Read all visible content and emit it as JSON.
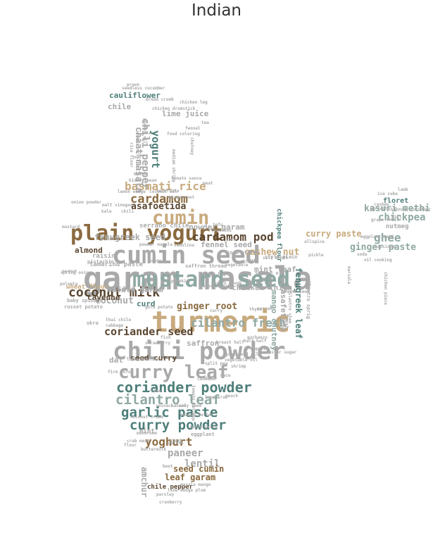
{
  "title": "Indian",
  "palette": {
    "gray": "#a9a9a9",
    "teal": "#4e7f7a",
    "sage": "#8fa8a3",
    "brown": "#8a6a3f",
    "tan": "#c8aa7e",
    "dark": "#5a4630"
  },
  "words": [
    {
      "text": "garam masala",
      "size": 100,
      "color": "gray"
    },
    {
      "text": "turmeric",
      "size": 95,
      "color": "tan"
    },
    {
      "text": "cumin seed",
      "size": 80,
      "color": "gray"
    },
    {
      "text": "chili powder",
      "size": 80,
      "color": "gray"
    },
    {
      "text": "mustard seed",
      "size": 78,
      "color": "sage"
    },
    {
      "text": "plain yogurt",
      "size": 70,
      "color": "brown"
    },
    {
      "text": "curry leaf",
      "size": 62,
      "color": "gray"
    },
    {
      "text": "cumin",
      "size": 60,
      "color": "tan"
    },
    {
      "text": "coriander powder",
      "size": 50,
      "color": "teal"
    },
    {
      "text": "cilantro leaf",
      "size": 48,
      "color": "sage"
    },
    {
      "text": "garlic paste",
      "size": 48,
      "color": "teal"
    },
    {
      "text": "curry powder",
      "size": 46,
      "color": "teal"
    },
    {
      "text": "coconut milk",
      "size": 45,
      "color": "dark"
    },
    {
      "text": "cardamom",
      "size": 44,
      "color": "brown"
    },
    {
      "text": "basmati rice",
      "size": 42,
      "color": "tan"
    },
    {
      "text": "cardamom pod",
      "size": 40,
      "color": "dark"
    },
    {
      "text": "cilantro fresh",
      "size": 40,
      "color": "sage"
    },
    {
      "text": "ghee",
      "size": 40,
      "color": "sage"
    },
    {
      "text": "yoghurt",
      "size": 38,
      "color": "brown"
    },
    {
      "text": "coriander seed",
      "size": 36,
      "color": "dark"
    },
    {
      "text": "yogurt",
      "size": 36,
      "color": "teal"
    },
    {
      "text": "chickpea",
      "size": 34,
      "color": "sage"
    },
    {
      "text": "chili pepper",
      "size": 34,
      "color": "gray"
    },
    {
      "text": "paneer",
      "size": 32,
      "color": "gray"
    },
    {
      "text": "lentil",
      "size": 30,
      "color": "gray"
    },
    {
      "text": "kasuri methi",
      "size": 30,
      "color": "sage"
    },
    {
      "text": "ginger paste",
      "size": 30,
      "color": "sage"
    },
    {
      "text": "ginger root",
      "size": 30,
      "color": "brown"
    },
    {
      "text": "cashew nut",
      "size": 30,
      "color": "tan"
    },
    {
      "text": "asafoetida",
      "size": 30,
      "color": "dark"
    },
    {
      "text": "coconut",
      "size": 30,
      "color": "gray"
    },
    {
      "text": "chaat masala",
      "size": 28,
      "color": "gray"
    },
    {
      "text": "seed cumin",
      "size": 28,
      "color": "brown"
    },
    {
      "text": "leaf garam",
      "size": 28,
      "color": "brown"
    },
    {
      "text": "amchur",
      "size": 28,
      "color": "gray"
    },
    {
      "text": "fenugreek leaf",
      "size": 26,
      "color": "teal"
    },
    {
      "text": "curry paste",
      "size": 26,
      "color": "tan"
    },
    {
      "text": "fenugreek seed",
      "size": 26,
      "color": "gray"
    },
    {
      "text": "lime juice",
      "size": 26,
      "color": "gray"
    },
    {
      "text": "cauliflower",
      "size": 26,
      "color": "teal"
    },
    {
      "text": "masala garam",
      "size": 26,
      "color": "gray"
    },
    {
      "text": "powder garam",
      "size": 26,
      "color": "gray"
    },
    {
      "text": "fennel seed",
      "size": 26,
      "color": "gray"
    },
    {
      "text": "mint leaf",
      "size": 26,
      "color": "gray"
    },
    {
      "text": "chicken thigh",
      "size": 26,
      "color": "gray"
    },
    {
      "text": "mango chutney",
      "size": 26,
      "color": "sage"
    },
    {
      "text": "asafetida",
      "size": 26,
      "color": "gray"
    },
    {
      "text": "masala cumin",
      "size": 26,
      "color": "gray"
    },
    {
      "text": "seed curry",
      "size": 24,
      "color": "dark"
    },
    {
      "text": "curd",
      "size": 24,
      "color": "teal"
    },
    {
      "text": "almond",
      "size": 24,
      "color": "dark"
    },
    {
      "text": "cayenne",
      "size": 24,
      "color": "dark"
    },
    {
      "text": "dal",
      "size": 24,
      "color": "gray"
    },
    {
      "text": "saffron",
      "size": 24,
      "color": "gray"
    },
    {
      "text": "chile",
      "size": 24,
      "color": "gray"
    },
    {
      "text": "floret",
      "size": 24,
      "color": "teal"
    },
    {
      "text": "nutmeg",
      "size": 22,
      "color": "gray"
    },
    {
      "text": "raisin",
      "size": 22,
      "color": "gray"
    },
    {
      "text": "chickpea flour",
      "size": 20,
      "color": "teal"
    },
    {
      "text": "mint",
      "size": 22,
      "color": "gray"
    },
    {
      "text": "chile pepper",
      "size": 22,
      "color": "dark"
    },
    {
      "text": "wheat flour",
      "size": 20,
      "color": "tan"
    },
    {
      "text": "tamarind paste",
      "size": 20,
      "color": "gray"
    },
    {
      "text": "serrano chile",
      "size": 20,
      "color": "gray"
    },
    {
      "text": "eggplant",
      "size": 18,
      "color": "gray"
    },
    {
      "text": "okra",
      "size": 18,
      "color": "gray"
    },
    {
      "text": "saffron thread",
      "size": 18,
      "color": "gray"
    },
    {
      "text": "fresh",
      "size": 18,
      "color": "gray"
    },
    {
      "text": "pistachio",
      "size": 18,
      "color": "gray"
    },
    {
      "text": "baby spinach",
      "size": 18,
      "color": "gray"
    },
    {
      "text": "russet potato",
      "size": 18,
      "color": "gray"
    },
    {
      "text": "style plain",
      "size": 18,
      "color": "gray"
    },
    {
      "text": "cilantro sprig",
      "size": 18,
      "color": "gray"
    },
    {
      "text": "corn starch",
      "size": 16,
      "color": "gray"
    },
    {
      "text": "sesame oil",
      "size": 16,
      "color": "gray"
    },
    {
      "text": "kidney bean",
      "size": 16,
      "color": "gray"
    },
    {
      "text": "broth",
      "size": 16,
      "color": "gray"
    },
    {
      "text": "chicken drumstick",
      "size": 16,
      "color": "gray"
    },
    {
      "text": "breast half",
      "size": 16,
      "color": "gray"
    },
    {
      "text": "spinach leaf",
      "size": 16,
      "color": "gray"
    },
    {
      "text": "firm tofu",
      "size": 16,
      "color": "gray"
    },
    {
      "text": "coconut cream",
      "size": 16,
      "color": "gray"
    },
    {
      "text": "lamb shoulder",
      "size": 16,
      "color": "gray"
    },
    {
      "text": "split pea",
      "size": 16,
      "color": "gray"
    },
    {
      "text": "tomato sauce",
      "size": 16,
      "color": "gray"
    },
    {
      "text": "star anise",
      "size": 16,
      "color": "gray"
    },
    {
      "text": "gold potato",
      "size": 16,
      "color": "gray"
    },
    {
      "text": "sesame seed",
      "size": 16,
      "color": "gray"
    },
    {
      "text": "cilantro stem",
      "size": 16,
      "color": "gray"
    },
    {
      "text": "garbanzo",
      "size": 16,
      "color": "gray"
    },
    {
      "text": "lemon wedge",
      "size": 16,
      "color": "gray"
    },
    {
      "text": "coconut oil",
      "size": 16,
      "color": "gray"
    },
    {
      "text": "gingerroot",
      "size": 16,
      "color": "gray"
    },
    {
      "text": "buttermilk",
      "size": 16,
      "color": "gray"
    },
    {
      "text": "chilli",
      "size": 16,
      "color": "gray"
    },
    {
      "text": "tomato ketchup",
      "size": 16,
      "color": "gray"
    },
    {
      "text": "vegetable",
      "size": 16,
      "color": "gray"
    },
    {
      "text": "salt broth",
      "size": 16,
      "color": "gray"
    },
    {
      "text": "thai chile",
      "size": 16,
      "color": "gray"
    },
    {
      "text": "cabbage",
      "size": 16,
      "color": "gray"
    },
    {
      "text": "shrimp",
      "size": 16,
      "color": "gray"
    },
    {
      "text": "apple",
      "size": 16,
      "color": "gray"
    },
    {
      "text": "cucumber",
      "size": 16,
      "color": "gray"
    },
    {
      "text": "couscous",
      "size": 16,
      "color": "gray"
    },
    {
      "text": "mushroom",
      "size": 16,
      "color": "gray"
    },
    {
      "text": "lamb",
      "size": 16,
      "color": "gray"
    },
    {
      "text": "ice cube",
      "size": 16,
      "color": "gray"
    },
    {
      "text": "cashew",
      "size": 16,
      "color": "gray"
    },
    {
      "text": "capsicum",
      "size": 16,
      "color": "gray"
    },
    {
      "text": "juice",
      "size": 16,
      "color": "gray"
    },
    {
      "text": "chicken piece",
      "size": 16,
      "color": "gray"
    },
    {
      "text": "pickle",
      "size": 16,
      "color": "gray"
    },
    {
      "text": "allspice",
      "size": 16,
      "color": "gray"
    },
    {
      "text": "bread crumb",
      "size": 16,
      "color": "gray"
    },
    {
      "text": "peanut oil",
      "size": 16,
      "color": "gray"
    },
    {
      "text": "food coloring",
      "size": 16,
      "color": "gray"
    },
    {
      "text": "medium shrimp",
      "size": 16,
      "color": "gray"
    },
    {
      "text": "chutney",
      "size": 16,
      "color": "gray"
    },
    {
      "text": "mace",
      "size": 16,
      "color": "gray"
    },
    {
      "text": "peanut",
      "size": 16,
      "color": "gray"
    },
    {
      "text": "mango",
      "size": 16,
      "color": "gray"
    },
    {
      "text": "semolina",
      "size": 16,
      "color": "gray"
    },
    {
      "text": "caster sugar",
      "size": 16,
      "color": "gray"
    },
    {
      "text": "curry",
      "size": 16,
      "color": "gray"
    },
    {
      "text": "parsley",
      "size": 16,
      "color": "gray"
    },
    {
      "text": "lime wedge plum",
      "size": 16,
      "color": "gray"
    },
    {
      "text": "masala mango",
      "size": 16,
      "color": "gray"
    },
    {
      "text": "cranberry",
      "size": 16,
      "color": "gray"
    },
    {
      "text": "beet",
      "size": 16,
      "color": "gray"
    },
    {
      "text": "prawn",
      "size": 16,
      "color": "gray"
    },
    {
      "text": "seedless cucumber",
      "size": 16,
      "color": "gray"
    },
    {
      "text": "chicken leg",
      "size": 16,
      "color": "gray"
    },
    {
      "text": "kale",
      "size": 16,
      "color": "gray"
    },
    {
      "text": "chili",
      "size": 16,
      "color": "gray"
    },
    {
      "text": "onion powder",
      "size": 16,
      "color": "gray"
    },
    {
      "text": "mustard",
      "size": 16,
      "color": "gray"
    },
    {
      "text": "malt vinegar",
      "size": 16,
      "color": "gray"
    },
    {
      "text": "corn",
      "size": 16,
      "color": "gray"
    },
    {
      "text": "tofu",
      "size": 16,
      "color": "gray"
    },
    {
      "text": "soda",
      "size": 16,
      "color": "gray"
    },
    {
      "text": "oil cooking",
      "size": 16,
      "color": "gray"
    },
    {
      "text": "dill",
      "size": 16,
      "color": "gray"
    },
    {
      "text": "apricot",
      "size": 16,
      "color": "gray"
    },
    {
      "text": "grape fruit",
      "size": 16,
      "color": "gray"
    },
    {
      "text": "hothouse cucumber",
      "size": 16,
      "color": "gray"
    },
    {
      "text": "marsala",
      "size": 16,
      "color": "gray"
    },
    {
      "text": "tea bag",
      "size": 16,
      "color": "gray"
    },
    {
      "text": "pumpkin",
      "size": 16,
      "color": "gray"
    },
    {
      "text": "thyme",
      "size": 16,
      "color": "gray"
    },
    {
      "text": "currant",
      "size": 16,
      "color": "gray"
    },
    {
      "text": "half half",
      "size": 16,
      "color": "gray"
    },
    {
      "text": "lime",
      "size": 16,
      "color": "gray"
    },
    {
      "text": "fish",
      "size": 16,
      "color": "gray"
    },
    {
      "text": "strawberry",
      "size": 16,
      "color": "gray"
    },
    {
      "text": "grapeseed oil",
      "size": 16,
      "color": "gray"
    },
    {
      "text": "vegetable oil",
      "size": 16,
      "color": "gray"
    },
    {
      "text": "lump crab",
      "size": 16,
      "color": "gray"
    },
    {
      "text": "peach",
      "size": 16,
      "color": "gray"
    },
    {
      "text": "caraway seed",
      "size": 16,
      "color": "gray"
    },
    {
      "text": "peanut butter",
      "size": 16,
      "color": "gray"
    },
    {
      "text": "crab meat",
      "size": 16,
      "color": "gray"
    },
    {
      "text": "flour",
      "size": 16,
      "color": "gray"
    },
    {
      "text": "gravy",
      "size": 16,
      "color": "gray"
    },
    {
      "text": "potato",
      "size": 16,
      "color": "gray"
    },
    {
      "text": "polenta",
      "size": 16,
      "color": "gray"
    },
    {
      "text": "spring onion",
      "size": 16,
      "color": "gray"
    },
    {
      "text": "fennel",
      "size": 16,
      "color": "gray"
    },
    {
      "text": "nut",
      "size": 16,
      "color": "gray"
    },
    {
      "text": "tea",
      "size": 16,
      "color": "gray"
    },
    {
      "text": "rice flour",
      "size": 16,
      "color": "gray"
    },
    {
      "text": "wheat tortilla",
      "size": 16,
      "color": "gray"
    },
    {
      "text": "meat",
      "size": 16,
      "color": "gray"
    },
    {
      "text": "cornflake",
      "size": 16,
      "color": "gray"
    },
    {
      "text": "powder masala",
      "size": 16,
      "color": "gray"
    },
    {
      "text": "apple juice",
      "size": 16,
      "color": "gray"
    },
    {
      "text": "eggplant seed",
      "size": 16,
      "color": "gray"
    },
    {
      "text": "phyllo dough",
      "size": 16,
      "color": "gray"
    }
  ]
}
